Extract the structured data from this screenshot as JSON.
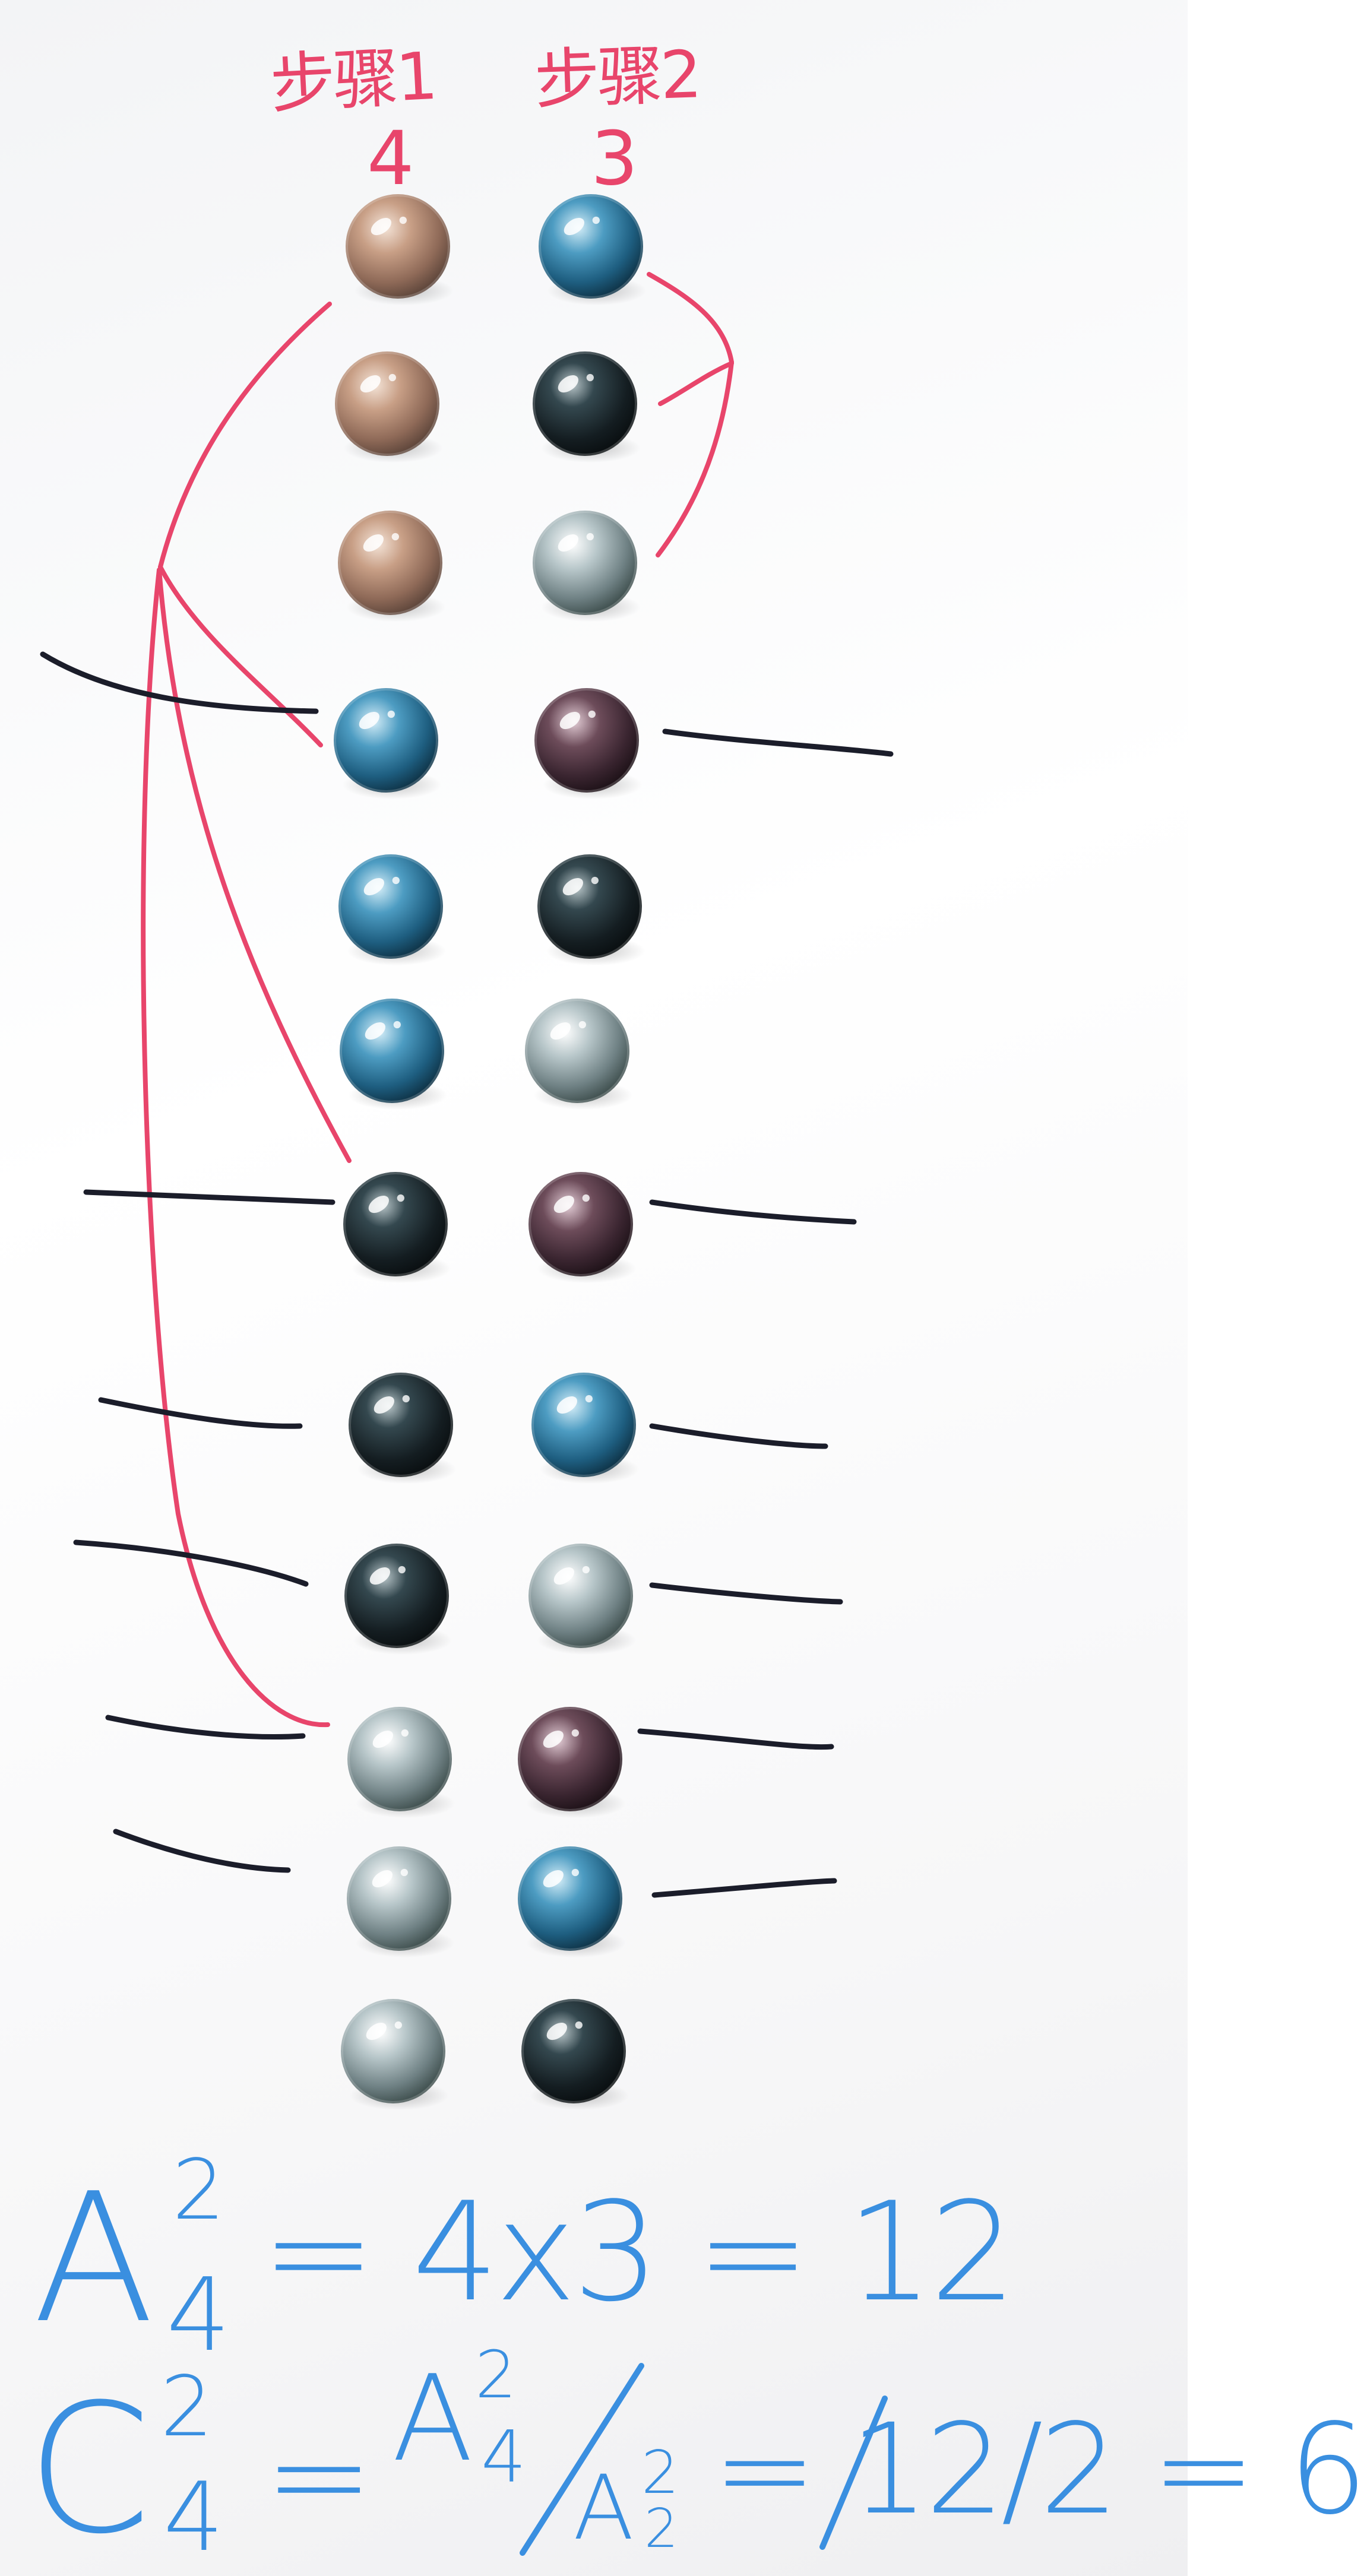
{
  "columns": [
    {
      "step_label": "步骤1",
      "count": "4"
    },
    {
      "step_label": "步骤2",
      "count": "3"
    }
  ],
  "marbles": {
    "left": [
      "copper",
      "copper",
      "copper",
      "blue",
      "blue",
      "blue",
      "black",
      "black",
      "black",
      "clear",
      "clear",
      "clear"
    ],
    "right": [
      "blue",
      "black",
      "clear",
      "amethyst",
      "black",
      "clear",
      "amethyst",
      "blue",
      "clear",
      "amethyst",
      "blue",
      "black"
    ]
  },
  "colors": {
    "copper": "#b48a72",
    "blue": "#2f7fa8",
    "black": "#1f2a2e",
    "clear": "#9fb0b4",
    "amethyst": "#5a3c48",
    "red_marker": "#e8456b",
    "blue_marker": "#3a8fe0",
    "black_marker": "#1b1d2a"
  },
  "formula_1": {
    "symbol": "A",
    "sup": "2",
    "sub": "4",
    "rhs": "= 4x3 = 12"
  },
  "formula_2": {
    "symbol": "C",
    "sup": "2",
    "sub": "4",
    "eq": "=",
    "frac_num": "A",
    "frac_num_sup": "2",
    "frac_num_sub": "4",
    "frac_den": "A",
    "frac_den_sup": "2",
    "frac_den_sub": "2",
    "rhs": "= 12/2 = 6"
  }
}
